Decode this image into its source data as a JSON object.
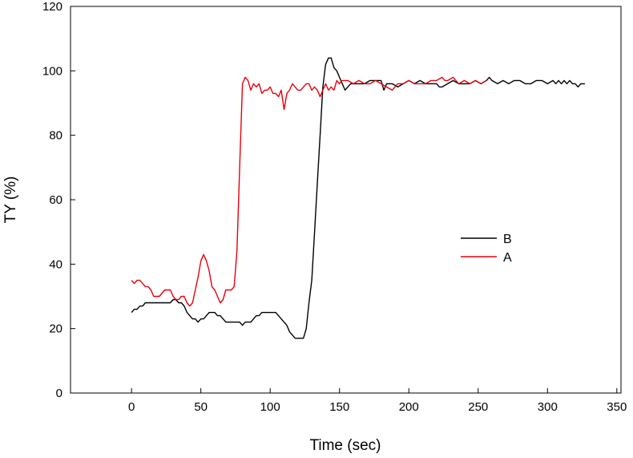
{
  "chart_data": {
    "type": "line",
    "title": "",
    "xlabel": "Time (sec)",
    "ylabel": "TY (%)",
    "xlim": [
      -44,
      353
    ],
    "ylim": [
      0,
      120
    ],
    "xticks": [
      0,
      50,
      100,
      150,
      200,
      250,
      300,
      350
    ],
    "yticks": [
      0,
      20,
      40,
      60,
      80,
      100,
      120
    ],
    "grid": false,
    "legend_position": "center-right",
    "series": [
      {
        "name": "B",
        "color": "#000000",
        "x": [
          0,
          2,
          4,
          6,
          8,
          10,
          12,
          14,
          16,
          18,
          20,
          22,
          24,
          26,
          28,
          30,
          32,
          34,
          36,
          38,
          40,
          42,
          44,
          46,
          48,
          50,
          52,
          54,
          56,
          58,
          60,
          62,
          64,
          66,
          68,
          70,
          72,
          74,
          76,
          78,
          80,
          82,
          84,
          86,
          88,
          90,
          92,
          94,
          96,
          98,
          100,
          102,
          104,
          106,
          108,
          110,
          112,
          114,
          116,
          118,
          120,
          122,
          124,
          126,
          128,
          130,
          132,
          134,
          136,
          138,
          140,
          142,
          144,
          146,
          148,
          150,
          152,
          154,
          156,
          158,
          160,
          164,
          168,
          172,
          176,
          180,
          182,
          184,
          188,
          192,
          196,
          200,
          204,
          208,
          212,
          216,
          220,
          222,
          224,
          228,
          232,
          236,
          240,
          244,
          248,
          252,
          256,
          258,
          260,
          264,
          268,
          272,
          276,
          280,
          284,
          288,
          292,
          296,
          300,
          304,
          306,
          308,
          310,
          312,
          314,
          316,
          318,
          320,
          322,
          324,
          327
        ],
        "y": [
          25,
          26,
          26,
          27,
          27,
          28,
          28,
          28,
          28,
          28,
          28,
          28,
          28,
          28,
          28,
          29,
          29,
          28,
          28,
          27,
          25,
          24,
          23,
          23,
          22,
          23,
          23,
          24,
          25,
          25,
          25,
          24,
          24,
          23,
          22,
          22,
          22,
          22,
          22,
          22,
          21,
          22,
          22,
          22,
          23,
          24,
          24,
          25,
          25,
          25,
          25,
          25,
          25,
          24,
          23,
          22,
          21,
          19,
          18,
          17,
          17,
          17,
          17,
          20,
          28,
          35,
          50,
          65,
          80,
          95,
          102,
          104,
          104,
          101,
          100,
          98,
          96,
          94,
          95,
          96,
          96,
          96,
          96,
          97,
          97,
          97,
          94,
          96,
          96,
          95,
          96,
          97,
          96,
          97,
          96,
          96,
          96,
          95,
          95,
          96,
          97,
          96,
          96,
          96,
          97,
          96,
          97,
          98,
          97,
          96,
          97,
          96,
          97,
          97,
          96,
          96,
          97,
          97,
          96,
          97,
          96,
          97,
          96,
          97,
          96,
          97,
          96,
          96,
          95,
          96,
          96
        ]
      },
      {
        "name": "A",
        "color": "#e8000b",
        "x": [
          0,
          2,
          4,
          6,
          8,
          10,
          12,
          14,
          16,
          18,
          20,
          22,
          24,
          26,
          28,
          30,
          32,
          34,
          36,
          38,
          40,
          42,
          44,
          46,
          48,
          50,
          52,
          54,
          56,
          58,
          60,
          62,
          64,
          66,
          68,
          70,
          72,
          74,
          76,
          78,
          80,
          82,
          84,
          86,
          88,
          90,
          92,
          94,
          96,
          98,
          100,
          102,
          104,
          106,
          108,
          110,
          112,
          114,
          116,
          118,
          120,
          122,
          124,
          126,
          128,
          130,
          132,
          134,
          136,
          138,
          140,
          142,
          144,
          146,
          148,
          150,
          152,
          156,
          160,
          164,
          168,
          172,
          176,
          180,
          184,
          188,
          192,
          196,
          200,
          204,
          208,
          212,
          216,
          220,
          224,
          226,
          228,
          232,
          236,
          240,
          244,
          248,
          252,
          256
        ],
        "y": [
          35,
          34,
          35,
          35,
          34,
          33,
          33,
          32,
          30,
          30,
          30,
          31,
          32,
          32,
          32,
          30,
          29,
          29,
          30,
          30,
          28,
          27,
          28,
          32,
          36,
          41,
          43,
          41,
          38,
          33,
          32,
          30,
          28,
          29,
          32,
          32,
          32,
          33,
          44,
          70,
          96,
          98,
          97,
          94,
          96,
          95,
          96,
          93,
          94,
          94,
          95,
          93,
          93,
          92,
          94,
          88,
          93,
          94,
          96,
          95,
          94,
          94,
          95,
          96,
          96,
          94,
          95,
          94,
          92,
          94,
          96,
          94,
          95,
          94,
          97,
          96,
          97,
          97,
          96,
          97,
          96,
          96,
          97,
          96,
          95,
          94,
          96,
          96,
          97,
          96,
          96,
          96,
          97,
          97,
          98,
          97,
          97,
          98,
          96,
          97,
          96,
          97,
          96,
          97
        ]
      }
    ]
  }
}
